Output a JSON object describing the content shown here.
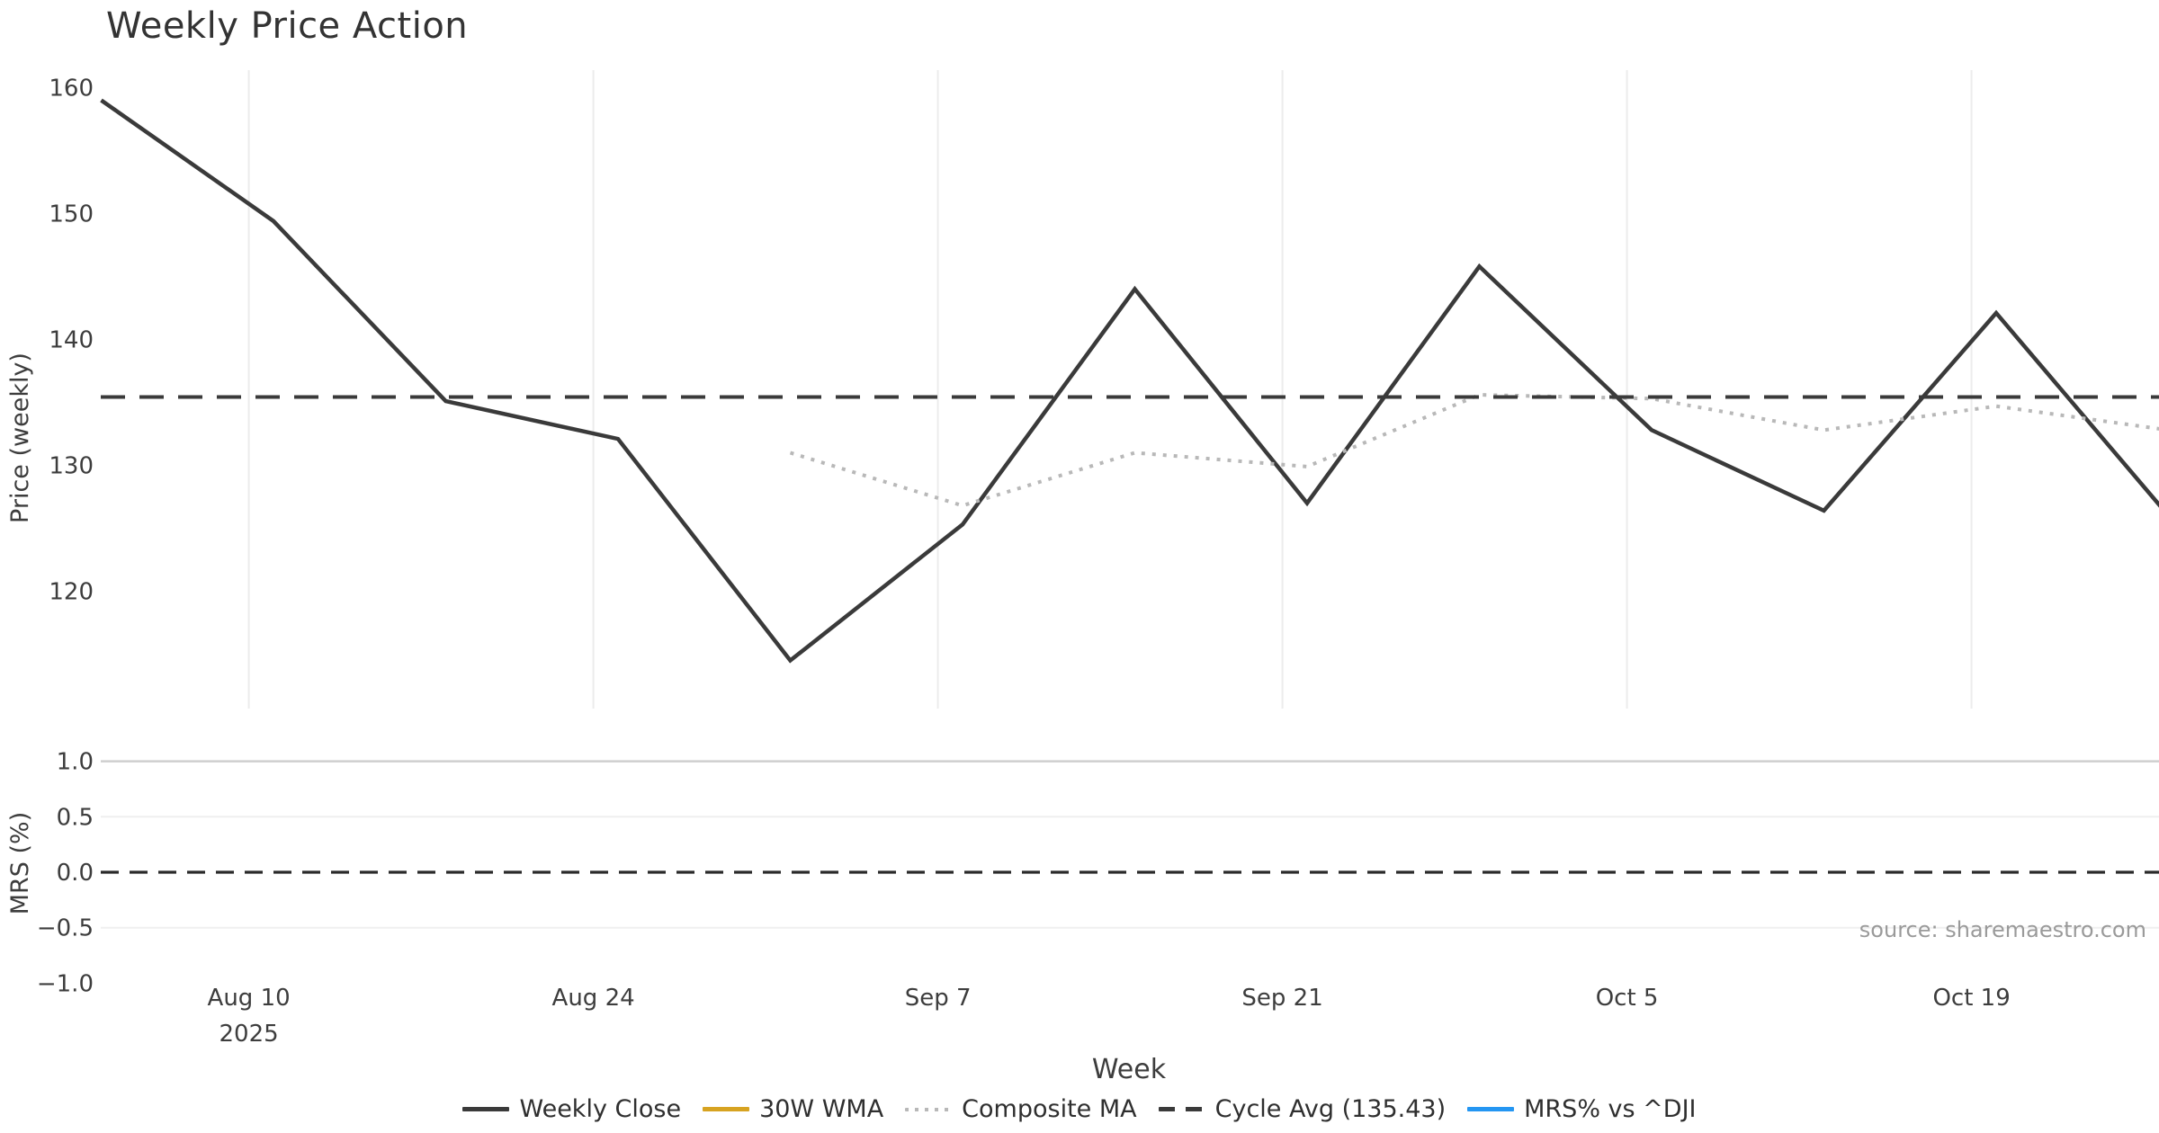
{
  "title": "Weekly Price Action",
  "source_note": "source: sharemaestro.com",
  "colors": {
    "close": "#3a3a3a",
    "wma30": "#d7a321",
    "composite": "#b8b8b8",
    "cycle": "#3a3a3a",
    "mrs": "#2496f2",
    "grid_vertical": "#ececec",
    "grid_major_h": "#cfcfcf",
    "grid_minor_h": "#efefef",
    "tick_text": "#3d3d3d",
    "source_text": "#9a9a9a"
  },
  "legend": {
    "items": [
      {
        "label": "Weekly Close",
        "color_key": "close",
        "style": "solid"
      },
      {
        "label": "30W WMA",
        "color_key": "wma30",
        "style": "solid"
      },
      {
        "label": "Composite MA",
        "color_key": "composite",
        "style": "dotted"
      },
      {
        "label": "Cycle Avg (135.43)",
        "color_key": "cycle",
        "style": "dashed"
      },
      {
        "label": "MRS% vs ^DJI",
        "color_key": "mrs",
        "style": "solid"
      }
    ]
  },
  "chart_data": [
    {
      "panel": "price",
      "type": "line",
      "title": "Weekly Price Action",
      "xlabel": "Week",
      "ylabel": "Price (weekly)",
      "x_dates": [
        "2025-08-04",
        "2025-08-11",
        "2025-08-18",
        "2025-08-25",
        "2025-09-01",
        "2025-09-08",
        "2025-09-15",
        "2025-09-22",
        "2025-09-29",
        "2025-10-06",
        "2025-10-13",
        "2025-10-20",
        "2025-10-27"
      ],
      "xticks": [
        {
          "label": "Aug 10",
          "sublabel": "2025"
        },
        {
          "label": "Aug 24",
          "sublabel": ""
        },
        {
          "label": "Sep 7",
          "sublabel": ""
        },
        {
          "label": "Sep 21",
          "sublabel": ""
        },
        {
          "label": "Oct 5",
          "sublabel": ""
        },
        {
          "label": "Oct 19",
          "sublabel": ""
        }
      ],
      "yticks": [
        {
          "label": "160",
          "value": 160
        },
        {
          "label": "150",
          "value": 150
        },
        {
          "label": "140",
          "value": 140
        },
        {
          "label": "130",
          "value": 130
        },
        {
          "label": "120",
          "value": 120
        }
      ],
      "ylim": [
        110.7,
        161.4
      ],
      "grid": "vertical-only",
      "legend_position": "bottom-center",
      "series": [
        {
          "name": "Weekly Close",
          "style": "solid",
          "color_key": "close",
          "values": [
            159.0,
            149.4,
            135.1,
            132.1,
            114.5,
            125.3,
            144.0,
            127.0,
            145.8,
            132.8,
            126.4,
            142.1,
            126.0
          ]
        },
        {
          "name": "30W WMA",
          "style": "solid",
          "color_key": "wma30",
          "values": []
        },
        {
          "name": "Composite MA",
          "style": "dotted",
          "color_key": "composite",
          "values": [
            null,
            null,
            null,
            null,
            131.0,
            126.8,
            131.0,
            129.9,
            135.6,
            135.3,
            132.8,
            134.7,
            132.8
          ]
        },
        {
          "name": "Cycle Avg (135.43)",
          "style": "dashed",
          "color_key": "cycle",
          "constant": 135.43
        }
      ]
    },
    {
      "panel": "mrs",
      "type": "line",
      "ylabel": "MRS (%)",
      "yticks": [
        {
          "label": "1.0",
          "value": 1.0
        },
        {
          "label": "0.5",
          "value": 0.5
        },
        {
          "label": "0.0",
          "value": 0.0
        },
        {
          "label": "−0.5",
          "value": -0.5
        },
        {
          "label": "−1.0",
          "value": -1.0
        }
      ],
      "ylim": [
        -1.05,
        1.1
      ],
      "grid": "horizontal-only",
      "series": [
        {
          "name": "MRS% vs ^DJI",
          "style": "solid",
          "color_key": "mrs",
          "values": []
        },
        {
          "name": "Zero line",
          "style": "dashed",
          "color_key": "cycle",
          "constant": 0.0
        }
      ]
    }
  ]
}
